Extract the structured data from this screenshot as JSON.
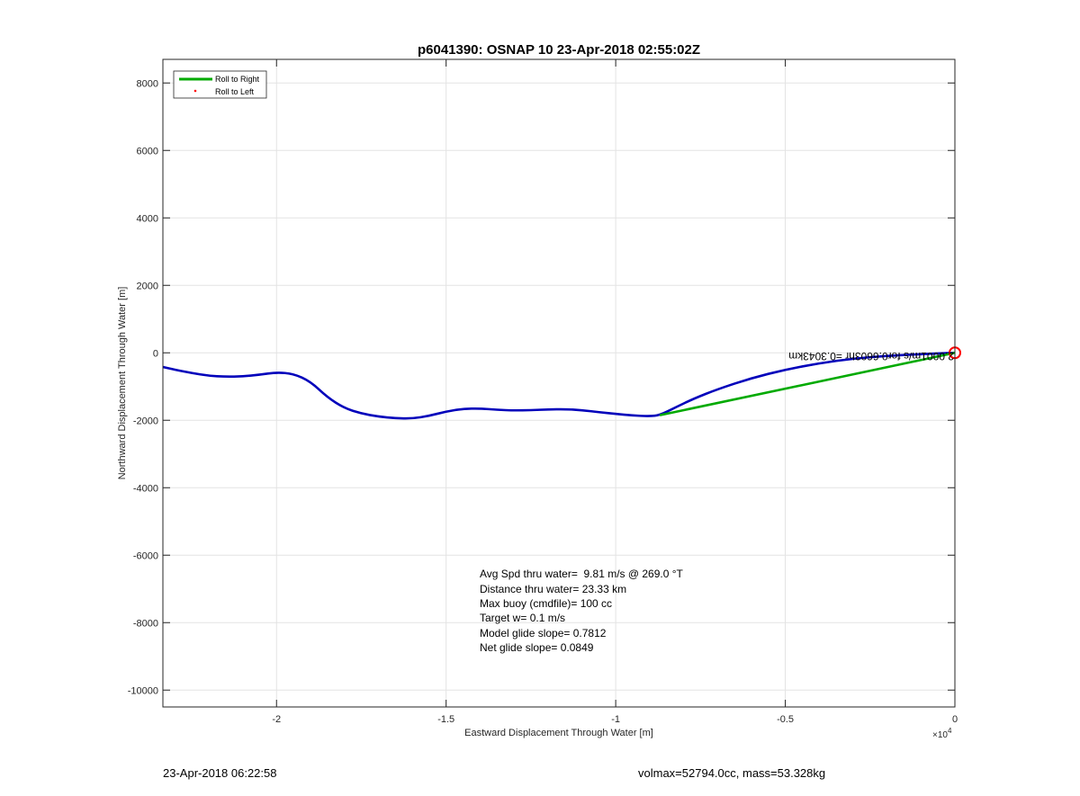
{
  "chart_data": {
    "type": "line",
    "title": "p6041390: OSNAP 10 23-Apr-2018 02:55:02Z",
    "xlabel": "Eastward Displacement Through Water [m]",
    "ylabel": "Northward Displacement Through Water [m]",
    "x_exponent_label": "×10",
    "x_exponent_power": "4",
    "xlim": [
      -23350,
      0
    ],
    "ylim": [
      -10500,
      8700
    ],
    "x_ticks": [
      {
        "value": -20000,
        "label": "-2"
      },
      {
        "value": -15000,
        "label": "-1.5"
      },
      {
        "value": -10000,
        "label": "-1"
      },
      {
        "value": -5000,
        "label": "-0.5"
      },
      {
        "value": 0,
        "label": "0"
      }
    ],
    "y_ticks": [
      {
        "value": 8000,
        "label": "8000"
      },
      {
        "value": 6000,
        "label": "6000"
      },
      {
        "value": 4000,
        "label": "4000"
      },
      {
        "value": 2000,
        "label": "2000"
      },
      {
        "value": 0,
        "label": "0"
      },
      {
        "value": -2000,
        "label": "-2000"
      },
      {
        "value": -4000,
        "label": "-4000"
      },
      {
        "value": -6000,
        "label": "-6000"
      },
      {
        "value": -8000,
        "label": "-8000"
      },
      {
        "value": -10000,
        "label": "-10000"
      }
    ],
    "grid": true,
    "legend_position": "top-left",
    "legend": [
      {
        "label": "Roll to Right",
        "color": "#00aa00",
        "style": "line"
      },
      {
        "label": "Roll to Left",
        "color": "#ff0000",
        "style": "dot"
      }
    ],
    "series": [
      {
        "color": "#0000bb",
        "x": [
          -23350,
          -23000,
          -22500,
          -22000,
          -21500,
          -21000,
          -20500,
          -20000,
          -19500,
          -19000,
          -18500,
          -18000,
          -17500,
          -17000,
          -16500,
          -16000,
          -15500,
          -15000,
          -14500,
          -14000,
          -13500,
          -13000,
          -12500,
          -12000,
          -11500,
          -11000,
          -10500,
          -10000,
          -9500,
          -9000,
          -8700,
          -8200,
          -7700,
          -7000,
          -6000,
          -5000,
          -4000,
          -3000,
          -2000,
          -1000,
          -300,
          0
        ],
        "y": [
          -420,
          -500,
          -600,
          -680,
          -710,
          -700,
          -650,
          -580,
          -620,
          -850,
          -1320,
          -1640,
          -1800,
          -1890,
          -1940,
          -1950,
          -1870,
          -1740,
          -1660,
          -1650,
          -1690,
          -1710,
          -1700,
          -1680,
          -1670,
          -1700,
          -1760,
          -1810,
          -1860,
          -1880,
          -1850,
          -1600,
          -1360,
          -1080,
          -750,
          -500,
          -310,
          -170,
          -90,
          -40,
          -10,
          0
        ]
      },
      {
        "color": "#00aa00",
        "x": [
          -8700,
          0
        ],
        "y": [
          -1850,
          0
        ]
      }
    ],
    "marker": {
      "x": 0,
      "y": 0,
      "color": "#ff0000"
    },
    "annotation_flipped": "2.0001m/s for0.6603hr =0.3043km",
    "stats": [
      "Avg Spd thru water=  9.81 m/s @ 269.0 °T",
      "Distance thru water= 23.33 km",
      "Max buoy (cmdfile)= 100 cc",
      "Target w= 0.1 m/s",
      "Model glide slope= 0.7812",
      "Net glide slope= 0.0849"
    ]
  },
  "footer": {
    "timestamp": "23-Apr-2018 06:22:58",
    "summary": "volmax=52794.0cc, mass=53.328kg"
  }
}
